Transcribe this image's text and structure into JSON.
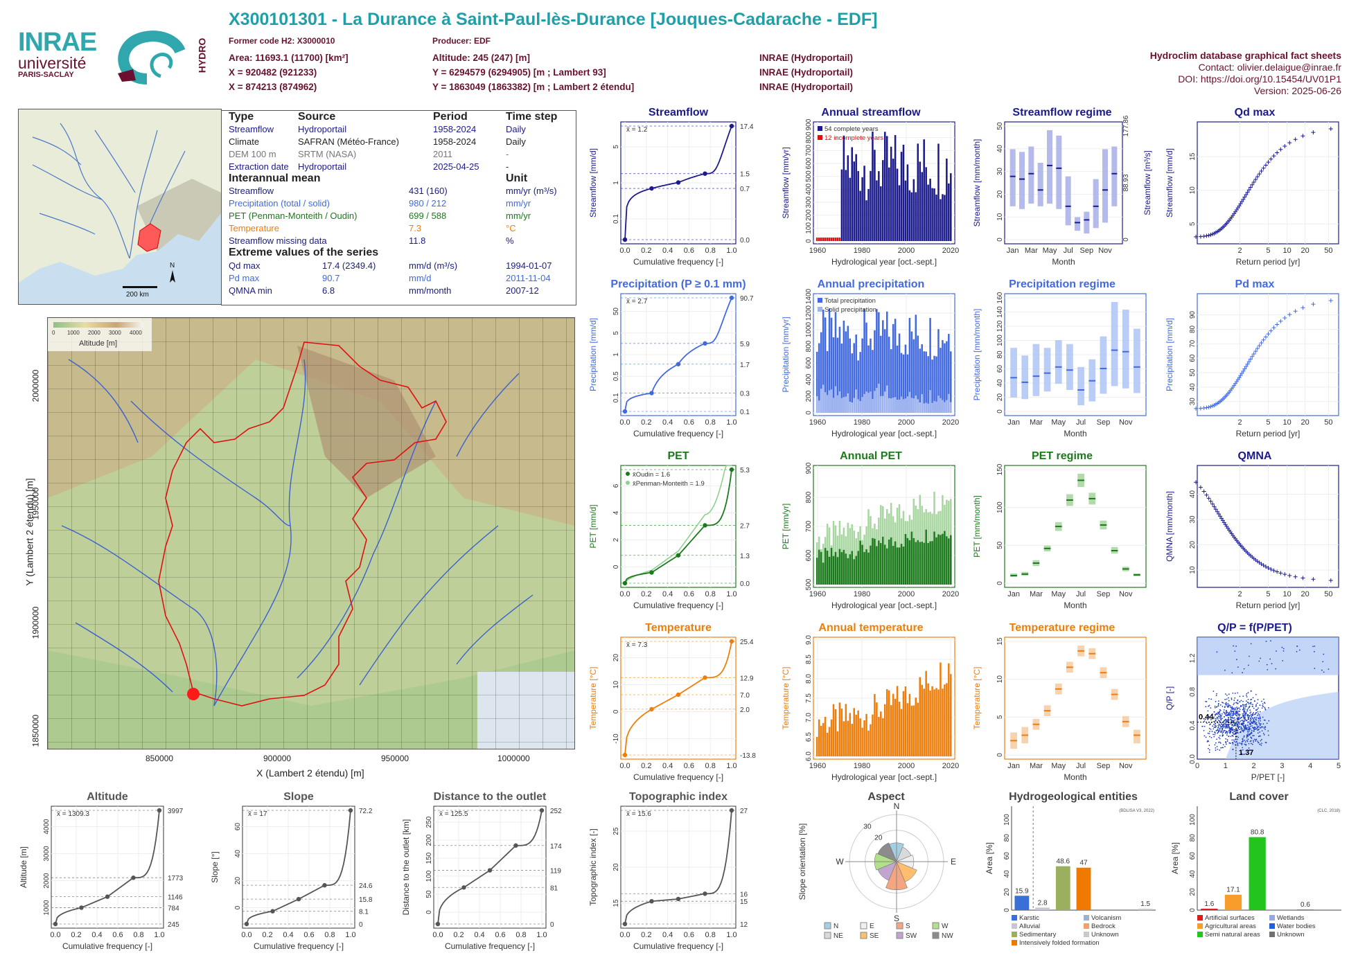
{
  "header": {
    "title": "X300101301 - La Durance à Saint-Paul-lès-Durance [Jouques-Cadarache - EDF]",
    "former_code": "Former code H2: X3000010",
    "producer": "Producer: EDF",
    "area": "Area: 11693.1 (11700) [km²]",
    "altitude": "Altitude: 245 (247) [m]",
    "x1": "X = 920482 (921233)",
    "y1": "Y = 6294579 (6294905) [m ; Lambert 93]",
    "x2": "X = 874213 (874962)",
    "y2": "Y = 1863049 (1863382) [m ; Lambert 2 étendu]",
    "src1": "INRAE (Hydroportail)",
    "src2": "INRAE (Hydroportail)",
    "src3": "INRAE (Hydroportail)",
    "db_title": "Hydroclim database graphical fact sheets",
    "contact": "Contact: olivier.delaigue@inrae.fr",
    "doi": "DOI: https://doi.org/10.15454/UV01P1",
    "version": "Version: 2025-06-26"
  },
  "logos": {
    "inrae": "INRAE",
    "univ": "université",
    "univ2": "PARIS-SACLAY",
    "hydro": "HYDRO"
  },
  "colors": {
    "streamflow": "#1a1a8c",
    "precip": "#4169e1",
    "pet": "#1b7a1b",
    "temp": "#ee7e0b",
    "title_teal": "#1fa0a8",
    "header": "#6b1030"
  },
  "overview_map": {
    "scale": "200 km",
    "north": "N"
  },
  "table": {
    "col_type": "Type",
    "col_source": "Source",
    "col_period": "Period",
    "col_step": "Time step",
    "rows": [
      {
        "type": "Streamflow",
        "source": "Hydroportail",
        "period": "1958-2024",
        "step": "Daily"
      },
      {
        "type": "Climate",
        "source": "SAFRAN (Météo-France)",
        "period": "1958-2024",
        "step": "Daily"
      },
      {
        "type": "DEM 100 m",
        "source": "SRTM (NASA)",
        "period": "2011",
        "step": "-"
      },
      {
        "type": "Extraction date",
        "source": "Hydroportail",
        "period": "2025-04-25",
        "step": "-"
      }
    ],
    "interannual_title": "Interannual mean",
    "unit_title": "Unit",
    "means": [
      {
        "label": "Streamflow",
        "value": "431 (160)",
        "unit": "mm/yr (m³/s)"
      },
      {
        "label": "Precipitation (total / solid)",
        "value": "980 / 212",
        "unit": "mm/yr"
      },
      {
        "label": "PET (Penman-Monteith / Oudin)",
        "value": "699 / 588",
        "unit": "mm/yr"
      },
      {
        "label": "Temperature",
        "value": "7.3",
        "unit": "°C"
      },
      {
        "label": "Streamflow missing data",
        "value": "11.8",
        "unit": "%"
      }
    ],
    "extreme_title": "Extreme values of the series",
    "extremes": [
      {
        "label": "Qd max",
        "value": "17.4 (2349.4)",
        "unit": "mm/d (m³/s)",
        "date": "1994-01-07"
      },
      {
        "label": "Pd max",
        "value": "90.7",
        "unit": "mm/d",
        "date": "2011-11-04"
      },
      {
        "label": "QMNA min",
        "value": "6.8",
        "unit": "mm/month",
        "date": "2007-12"
      }
    ]
  },
  "big_map": {
    "legend_title": "Altitude [m]",
    "legend_ticks": [
      "0",
      "1000",
      "2000",
      "3000",
      "4000"
    ],
    "xlabel": "X (Lambert 2 étendu) [m]",
    "ylabel": "Y (Lambert 2 étendu) [m]",
    "xticks": [
      "850000",
      "900000",
      "950000",
      "1000000"
    ],
    "yticks": [
      "2000000",
      "1950000",
      "1900000",
      "1850000"
    ]
  },
  "chart_data": [
    {
      "id": "streamflow",
      "type": "line",
      "title": "Streamflow",
      "xlabel": "Cumulative frequency [-]",
      "ylabel": "Streamflow [mm/d]",
      "mean": "x̄ = 1.2",
      "x": [
        0,
        0.25,
        0.5,
        0.75,
        1
      ],
      "values": [
        0.0,
        0.7,
        0.95,
        1.5,
        17.4
      ],
      "right_labels": [
        "17.4",
        "1.5",
        "0.7",
        "0.0"
      ],
      "xticks": [
        "0.0",
        "0.2",
        "0.4",
        "0.6",
        "0.8",
        "1.0"
      ],
      "yticks": [
        "0.1",
        "1",
        "5"
      ]
    },
    {
      "id": "annual_streamflow",
      "type": "bar",
      "title": "Annual streamflow",
      "xlabel": "Hydrological year [oct.-sept.]",
      "ylabel": "Streamflow [mm/yr]",
      "legend": [
        "54 complete years",
        "12 incomplete years"
      ],
      "xticks": [
        "1960",
        "1980",
        "2000",
        "2020"
      ],
      "yticks": [
        "0",
        "100",
        "200",
        "300",
        "400",
        "500",
        "600",
        "700",
        "800",
        "900"
      ]
    },
    {
      "id": "streamflow_regime",
      "type": "box",
      "title": "Streamflow regime",
      "xlabel": "Month",
      "ylabel": "Streamflow [mm/month]",
      "ylabel2": "Streamflow [m³/s]",
      "categories": [
        "Jan",
        "Feb",
        "Mar",
        "Apr",
        "May",
        "Jun",
        "Jul",
        "Aug",
        "Sep",
        "Oct",
        "Nov",
        "Dec"
      ],
      "xticks": [
        "Jan",
        "Mar",
        "May",
        "Jul",
        "Sep",
        "Nov"
      ],
      "values": [
        38,
        37,
        39,
        33,
        42,
        41,
        27,
        21,
        22,
        27,
        33,
        39
      ],
      "low": [
        27,
        26,
        28,
        27,
        28,
        26,
        20,
        18,
        17,
        19,
        21,
        27
      ],
      "high": [
        48,
        47,
        49,
        43,
        55,
        53,
        38,
        23,
        25,
        37,
        48,
        49
      ],
      "yticks": [
        "0",
        "10",
        "20",
        "30",
        "40",
        "50"
      ],
      "right_ticks": [
        "0",
        "88.93",
        "177.86"
      ]
    },
    {
      "id": "qd_max",
      "type": "scatter",
      "title": "Qd max",
      "xlabel": "Return period [yr]",
      "ylabel": "Streamflow [mm/d]",
      "xticks": [
        "2",
        "5",
        "10",
        "20",
        "50"
      ],
      "yticks": [
        "5",
        "10",
        "15"
      ],
      "points_range": [
        1.6,
        17.4
      ]
    },
    {
      "id": "precipitation",
      "type": "line",
      "title": "Precipitation (P ≥ 0.1 mm)",
      "xlabel": "Cumulative frequency [-]",
      "ylabel": "Precipitation [mm/d]",
      "mean": "x̄ = 2.7",
      "x": [
        0,
        0.25,
        0.5,
        0.75,
        1
      ],
      "values": [
        0.1,
        0.3,
        1.7,
        5.9,
        90.7
      ],
      "right_labels": [
        "90.7",
        "5.9",
        "1.7",
        "0.3",
        "0.1"
      ],
      "xticks": [
        "0.0",
        "0.2",
        "0.4",
        "0.6",
        "0.8",
        "1.0"
      ],
      "yticks": [
        "0.1",
        "0.5",
        "1",
        "5",
        "50"
      ]
    },
    {
      "id": "annual_precipitation",
      "type": "bar",
      "title": "Annual precipitation",
      "xlabel": "Hydrological year [oct.-sept.]",
      "ylabel": "Precipitation [mm/yr]",
      "legend": [
        "Total precipitation",
        "Solid precipitation"
      ],
      "xticks": [
        "1960",
        "1980",
        "2000",
        "2020"
      ],
      "yticks": [
        "0",
        "200",
        "400",
        "600",
        "800",
        "1000",
        "1200",
        "1400"
      ]
    },
    {
      "id": "precipitation_regime",
      "type": "box",
      "title": "Precipitation regime",
      "xlabel": "Month",
      "ylabel": "Precipitation [mm/month]",
      "categories": [
        "Jan",
        "Feb",
        "Mar",
        "Apr",
        "May",
        "Jun",
        "Jul",
        "Aug",
        "Sep",
        "Oct",
        "Nov",
        "Dec"
      ],
      "xticks": [
        "Jan",
        "Mar",
        "May",
        "Jul",
        "Sep",
        "Nov"
      ],
      "values": [
        66,
        60,
        68,
        72,
        80,
        76,
        50,
        62,
        78,
        102,
        100,
        80
      ],
      "low": [
        40,
        38,
        42,
        48,
        58,
        50,
        30,
        35,
        45,
        55,
        52,
        46
      ],
      "high": [
        105,
        95,
        110,
        105,
        115,
        110,
        80,
        90,
        120,
        165,
        155,
        130
      ],
      "yticks": [
        "0",
        "20",
        "40",
        "60",
        "80",
        "100",
        "120",
        "140",
        "160"
      ]
    },
    {
      "id": "pd_max",
      "type": "scatter",
      "title": "Pd max",
      "xlabel": "Return period [yr]",
      "ylabel": "Precipitation [mm/d]",
      "xticks": [
        "2",
        "5",
        "10",
        "20",
        "50"
      ],
      "yticks": [
        "30",
        "40",
        "50",
        "60",
        "70",
        "80",
        "90"
      ],
      "points_range": [
        31,
        90.7
      ]
    },
    {
      "id": "pet",
      "type": "line",
      "title": "PET",
      "xlabel": "Cumulative frequency [-]",
      "ylabel": "PET [mm/d]",
      "legend": [
        "x̄Oudin = 1.6",
        "x̄Penman-Monteith = 1.9"
      ],
      "x": [
        0,
        0.25,
        0.5,
        0.75,
        1
      ],
      "values": [
        0.0,
        0.5,
        1.3,
        2.7,
        5.3
      ],
      "values_pm": [
        0.0,
        0.6,
        1.5,
        3.2,
        7.0
      ],
      "right_labels": [
        "5.3",
        "2.7",
        "1.3",
        "0.0"
      ],
      "xticks": [
        "0.0",
        "0.2",
        "0.4",
        "0.6",
        "0.8",
        "1.0"
      ],
      "yticks": [
        "0",
        "2",
        "4",
        "6"
      ]
    },
    {
      "id": "annual_pet",
      "type": "bar",
      "title": "Annual PET",
      "xlabel": "Hydrological year [oct.-sept.]",
      "ylabel": "PET [mm/yr]",
      "xticks": [
        "1960",
        "1980",
        "2000",
        "2020"
      ],
      "yticks": [
        "500",
        "600",
        "700",
        "800",
        "900"
      ]
    },
    {
      "id": "pet_regime",
      "type": "box",
      "title": "PET regime",
      "xlabel": "Month",
      "ylabel": "PET [mm/month]",
      "categories": [
        "Jan",
        "Feb",
        "Mar",
        "Apr",
        "May",
        "Jun",
        "Jul",
        "Aug",
        "Sep",
        "Oct",
        "Nov",
        "Dec"
      ],
      "xticks": [
        "Jan",
        "Mar",
        "May",
        "Jul",
        "Sep",
        "Nov"
      ],
      "values": [
        7,
        9,
        24,
        44,
        74,
        110,
        137,
        112,
        76,
        41,
        16,
        8
      ],
      "low": [
        5,
        7,
        20,
        40,
        68,
        102,
        128,
        104,
        70,
        37,
        13,
        6
      ],
      "high": [
        10,
        12,
        28,
        48,
        80,
        118,
        146,
        120,
        82,
        46,
        19,
        10
      ],
      "yticks": [
        "0",
        "50",
        "100",
        "150"
      ]
    },
    {
      "id": "qmna",
      "type": "scatter",
      "title": "QMNA",
      "xlabel": "Return period [yr]",
      "ylabel": "QMNA [mm/month]",
      "xticks": [
        "2",
        "5",
        "10",
        "20",
        "50"
      ],
      "yticks": [
        "10",
        "20",
        "30",
        "40"
      ],
      "points_range": [
        43,
        7
      ]
    },
    {
      "id": "temperature",
      "type": "line",
      "title": "Temperature",
      "xlabel": "Cumulative frequency [-]",
      "ylabel": "Temperature [°C]",
      "mean": "x̄ = 7.3",
      "x": [
        0,
        0.25,
        0.5,
        0.75,
        1
      ],
      "values": [
        -13.8,
        2.0,
        7.0,
        12.9,
        25.4
      ],
      "right_labels": [
        "25.4",
        "12.9",
        "7.0",
        "2.0",
        "-13.8"
      ],
      "xticks": [
        "0.0",
        "0.2",
        "0.4",
        "0.6",
        "0.8",
        "1.0"
      ],
      "yticks": [
        "-10",
        "0",
        "10",
        "20"
      ]
    },
    {
      "id": "annual_temperature",
      "type": "bar",
      "title": "Annual temperature",
      "xlabel": "Hydrological year [oct.-sept.]",
      "ylabel": "Temperature [°C]",
      "xticks": [
        "1960",
        "1980",
        "2000",
        "2020"
      ],
      "yticks": [
        "6.0",
        "6.5",
        "7.0",
        "7.5",
        "8.0",
        "8.5",
        "9.0"
      ]
    },
    {
      "id": "temperature_regime",
      "type": "box",
      "title": "Temperature regime",
      "xlabel": "Month",
      "ylabel": "Temperature [°C]",
      "categories": [
        "Jan",
        "Feb",
        "Mar",
        "Apr",
        "May",
        "Jun",
        "Jul",
        "Aug",
        "Sep",
        "Oct",
        "Nov",
        "Dec"
      ],
      "xticks": [
        "Jan",
        "Mar",
        "May",
        "Jul",
        "Sep",
        "Nov"
      ],
      "values": [
        0,
        1,
        3,
        5.5,
        9.5,
        13.5,
        16.5,
        16,
        12.5,
        8.5,
        3.5,
        1
      ],
      "low": [
        -1.5,
        -0.5,
        2,
        4.5,
        8.5,
        12.5,
        15.5,
        15,
        11.5,
        7.5,
        2.5,
        -0.5
      ],
      "high": [
        1.5,
        2.5,
        4,
        6.5,
        10.5,
        14.5,
        17.5,
        17,
        13.5,
        9.5,
        4.5,
        2
      ],
      "yticks": [
        "0",
        "5",
        "10",
        "15"
      ]
    },
    {
      "id": "qp_f_ppet",
      "type": "scatter",
      "title": "Q/P = f(P/PET)",
      "xlabel": "P/PET [-]",
      "ylabel": "Q/P [-]",
      "annotations": [
        "0.44",
        "1.37"
      ],
      "xticks": [
        "0",
        "1",
        "2",
        "3",
        "4",
        "5"
      ],
      "yticks": [
        "0.0",
        "0.4",
        "0.8",
        "1.2"
      ]
    },
    {
      "id": "altitude",
      "type": "line",
      "title": "Altitude",
      "xlabel": "Cumulative frequency [-]",
      "ylabel": "Altitude [m]",
      "mean": "x̄ = 1309.3",
      "x": [
        0,
        0.25,
        0.5,
        0.75,
        1
      ],
      "values": [
        245,
        784,
        1146,
        1773,
        3997
      ],
      "right_labels": [
        "3997",
        "1773",
        "1146",
        "784",
        "245"
      ],
      "xticks": [
        "0.0",
        "0.2",
        "0.4",
        "0.6",
        "0.8",
        "1.0"
      ],
      "yticks": [
        "1000",
        "2000",
        "3000",
        "4000"
      ]
    },
    {
      "id": "slope",
      "type": "line",
      "title": "Slope",
      "xlabel": "Cumulative frequency [-]",
      "ylabel": "Slope [°]",
      "mean": "x̄ = 17",
      "x": [
        0,
        0.25,
        0.5,
        0.75,
        1
      ],
      "values": [
        0,
        8.1,
        15.8,
        24.6,
        72.2
      ],
      "right_labels": [
        "72.2",
        "24.6",
        "15.8",
        "8.1",
        "0"
      ],
      "xticks": [
        "0.0",
        "0.2",
        "0.4",
        "0.6",
        "0.8",
        "1.0"
      ],
      "yticks": [
        "0",
        "20",
        "40",
        "60"
      ]
    },
    {
      "id": "distance",
      "type": "line",
      "title": "Distance to the outlet",
      "xlabel": "Cumulative frequency [-]",
      "ylabel": "Distance to the outlet [km]",
      "mean": "x̄ = 125.5",
      "x": [
        0,
        0.25,
        0.5,
        0.75,
        1
      ],
      "values": [
        0,
        81,
        119,
        174,
        252
      ],
      "right_labels": [
        "252",
        "174",
        "119",
        "81",
        "0"
      ],
      "xticks": [
        "0.0",
        "0.2",
        "0.4",
        "0.6",
        "0.8",
        "1.0"
      ],
      "yticks": [
        "0",
        "50",
        "100",
        "150",
        "200",
        "250"
      ]
    },
    {
      "id": "topographic_index",
      "type": "line",
      "title": "Topographic index",
      "xlabel": "Cumulative frequency [-]",
      "ylabel": "Topographic index [-]",
      "mean": "x̄ = 15.6",
      "x": [
        0,
        0.25,
        0.5,
        0.75,
        1
      ],
      "values": [
        12,
        15,
        15.3,
        16,
        27
      ],
      "right_labels": [
        "27",
        "16",
        "15",
        "12"
      ],
      "xticks": [
        "0.0",
        "0.2",
        "0.4",
        "0.6",
        "0.8",
        "1.0"
      ],
      "yticks": [
        "15",
        "20",
        "25"
      ]
    },
    {
      "id": "aspect",
      "type": "pie",
      "title": "Aspect",
      "ylabel": "Slope orientation [%]",
      "ring_labels": [
        "10",
        "20",
        "30"
      ],
      "compass": [
        "N",
        "E",
        "S",
        "W"
      ],
      "categories": [
        "N",
        "NE",
        "E",
        "SE",
        "S",
        "SW",
        "W",
        "NW"
      ],
      "values": [
        12,
        10,
        11,
        14,
        18,
        13,
        14,
        13
      ],
      "colors": [
        "#a6cee3",
        "#d9d9d9",
        "#f0f0f0",
        "#fdbf6f",
        "#f4a582",
        "#c2a5cf",
        "#b2df8a",
        "#8c8c8c"
      ]
    },
    {
      "id": "hydrogeology",
      "type": "bar",
      "title": "Hydrogeological entities",
      "ylabel": "Area [%]",
      "note": "(BDLISA V3, 2022)",
      "categories": [
        "Karstic",
        "Alluvial",
        "Sedimentary",
        "Intensively folded formation",
        "Volcanism",
        "Bedrock",
        "Unknown"
      ],
      "values": [
        15.9,
        2.8,
        48.6,
        47,
        0,
        0,
        1.5
      ],
      "colors": [
        "#3a6fd8",
        "#c6c6d6",
        "#9ab05f",
        "#f07a00",
        "#9fb2c9",
        "#f4a06b",
        "#c9c9c9"
      ],
      "labels": [
        "15.9",
        "2.8",
        "48.6",
        "47",
        "1.5"
      ],
      "yticks": [
        "0",
        "20",
        "40",
        "60",
        "80",
        "100"
      ]
    },
    {
      "id": "land_cover",
      "type": "bar",
      "title": "Land cover",
      "ylabel": "Area [%]",
      "note": "(CLC, 2018)",
      "categories": [
        "Artificial surfaces",
        "Agricultural areas",
        "Semi natural areas",
        "Wetlands",
        "Water bodies",
        "Unknown"
      ],
      "values": [
        1.6,
        17.1,
        80.8,
        0,
        0.6,
        0
      ],
      "colors": [
        "#e31a1c",
        "#f89c2c",
        "#22c41e",
        "#96a9e0",
        "#1f5ee0",
        "#707070"
      ],
      "labels": [
        "1.6",
        "17.1",
        "80.8",
        "0.6"
      ],
      "yticks": [
        "0",
        "20",
        "40",
        "60",
        "80",
        "100"
      ]
    }
  ]
}
